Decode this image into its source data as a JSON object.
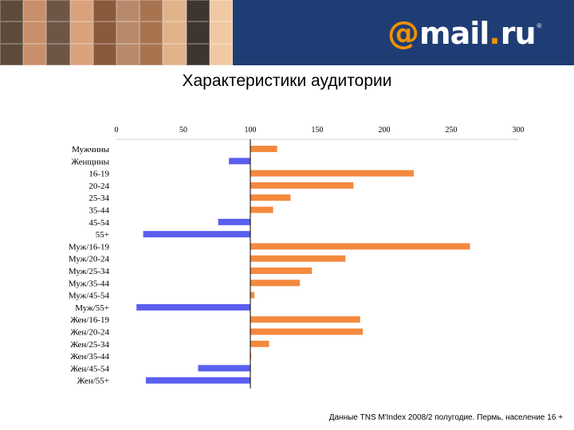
{
  "header": {
    "logo_at": "@",
    "logo_text": "mail",
    "logo_dot": ".",
    "logo_ru": "ru",
    "logo_reg": "®",
    "collage_icon": "people-photo-collage"
  },
  "title": "Характеристики аудитории",
  "footer": "Данные TNS M'Index 2008/2 полугодие. Пермь, население 16 +",
  "colors": {
    "header_bg": "#1f3d75",
    "above_100": "#f4893e",
    "below_100": "#5b5ff0",
    "logo_accent": "#f29100"
  },
  "chart_data": {
    "type": "bar",
    "orientation": "horizontal",
    "baseline": 100,
    "xlim": [
      0,
      300
    ],
    "xticks": [
      "0",
      "50",
      "100",
      "150",
      "200",
      "250",
      "300"
    ],
    "axis_position": "top",
    "grid": false,
    "categories": [
      "Мужчины",
      "Женщины",
      "16-19",
      "20-24",
      "25-34",
      "35-44",
      "45-54",
      "55+",
      "Муж/16-19",
      "Муж/20-24",
      "Муж/25-34",
      "Муж/35-44",
      "Муж/45-54",
      "Муж/55+",
      "Жен/16-19",
      "Жен/20-24",
      "Жен/25-34",
      "Жен/35-44",
      "Жен/45-54",
      "Жен/55+"
    ],
    "values": [
      120,
      84,
      222,
      177,
      130,
      117,
      76,
      20,
      264,
      171,
      146,
      137,
      103,
      15,
      182,
      184,
      114,
      100,
      61,
      22
    ]
  }
}
